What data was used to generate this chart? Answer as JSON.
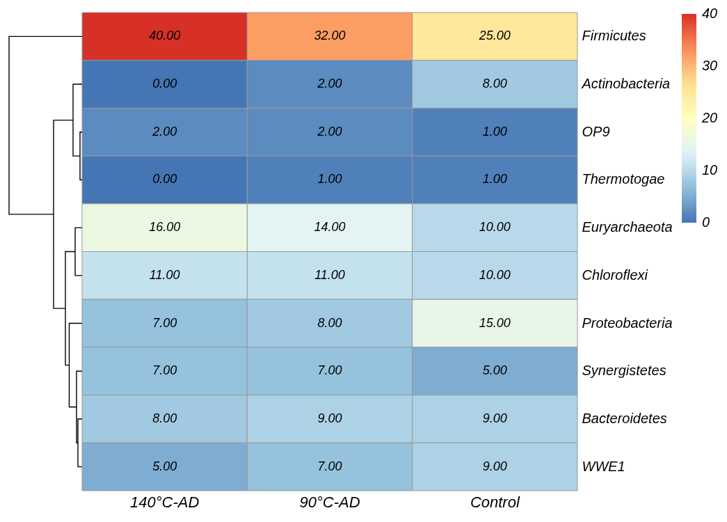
{
  "chart_data": {
    "type": "heatmap",
    "categories": [
      "140°C-AD",
      "90°C-AD",
      "Control"
    ],
    "y_categories": [
      "Firmicutes",
      "Actinobacteria",
      "OP9",
      "Thermotogae",
      "Euryarchaeota",
      "Chloroflexi",
      "Proteobacteria",
      "Synergistetes",
      "Bacteroidetes",
      "WWE1"
    ],
    "cells": [
      [
        40,
        32,
        25
      ],
      [
        0,
        2,
        8
      ],
      [
        2,
        2,
        1
      ],
      [
        0,
        1,
        1
      ],
      [
        16,
        14,
        10
      ],
      [
        11,
        11,
        10
      ],
      [
        7,
        8,
        15
      ],
      [
        7,
        7,
        5
      ],
      [
        8,
        9,
        9
      ],
      [
        5,
        7,
        9
      ]
    ],
    "cell_labels": [
      [
        "40.00",
        "32.00",
        "25.00"
      ],
      [
        "0.00",
        "2.00",
        "8.00"
      ],
      [
        "2.00",
        "2.00",
        "1.00"
      ],
      [
        "0.00",
        "1.00",
        "1.00"
      ],
      [
        "16.00",
        "14.00",
        "10.00"
      ],
      [
        "11.00",
        "11.00",
        "10.00"
      ],
      [
        "7.00",
        "8.00",
        "15.00"
      ],
      [
        "7.00",
        "7.00",
        "5.00"
      ],
      [
        "8.00",
        "9.00",
        "9.00"
      ],
      [
        "5.00",
        "7.00",
        "9.00"
      ]
    ],
    "clim": [
      0,
      40
    ],
    "cticks": [
      0,
      10,
      20,
      30,
      40
    ]
  }
}
